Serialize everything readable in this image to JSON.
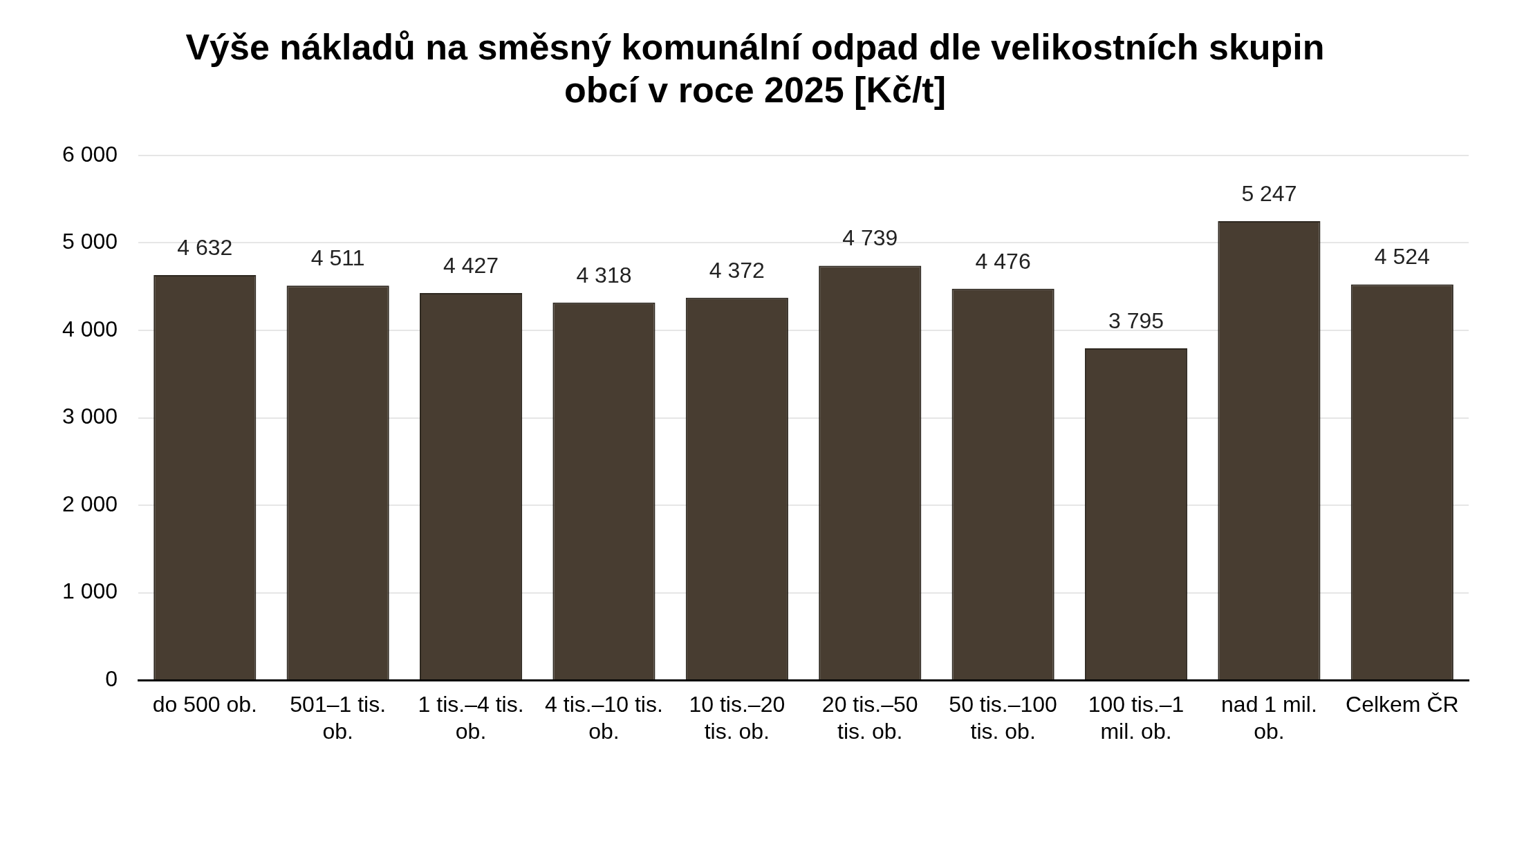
{
  "chart_data": {
    "type": "bar",
    "title": "Výše nákladů na směsný komunální odpad dle velikostních skupin obcí v roce 2025 [Kč/t]",
    "categories": [
      "do 500 ob.",
      "501–1 tis. ob.",
      "1 tis.–4 tis. ob.",
      "4 tis.–10 tis. ob.",
      "10 tis.–20 tis. ob.",
      "20 tis.–50 tis. ob.",
      "50 tis.–100 tis. ob.",
      "100 tis.–1 mil. ob.",
      "nad 1 mil. ob.",
      "Celkem ČR"
    ],
    "values": [
      4632,
      4511,
      4427,
      4318,
      4372,
      4739,
      4476,
      3795,
      5247,
      4524
    ],
    "value_labels": [
      "4 632",
      "4 511",
      "4 427",
      "4 318",
      "4 372",
      "4 739",
      "4 476",
      "3 795",
      "5 247",
      "4 524"
    ],
    "color": "#483d31",
    "ylim": [
      0,
      6000
    ],
    "yticks": [
      {
        "value": 0,
        "label": "0"
      },
      {
        "value": 1000,
        "label": "1 000"
      },
      {
        "value": 2000,
        "label": "2 000"
      },
      {
        "value": 3000,
        "label": "3 000"
      },
      {
        "value": 4000,
        "label": "4 000"
      },
      {
        "value": 5000,
        "label": "5 000"
      },
      {
        "value": 6000,
        "label": "6 000"
      }
    ],
    "grid": "y",
    "legend": false
  }
}
